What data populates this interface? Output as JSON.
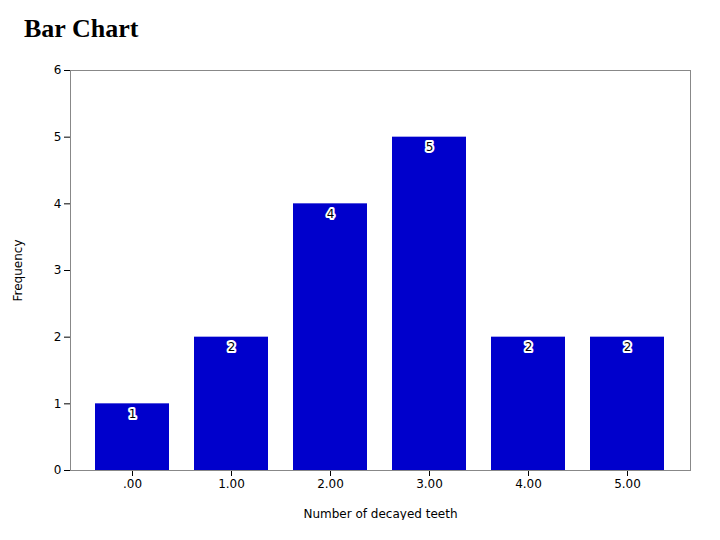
{
  "chart_data": {
    "type": "bar",
    "title": "Bar Chart",
    "categories": [
      ".00",
      "1.00",
      "2.00",
      "3.00",
      "4.00",
      "5.00"
    ],
    "values": [
      1,
      2,
      4,
      5,
      2,
      2
    ],
    "color": "#0000CC",
    "xlabel": "Number of decayed teeth",
    "ylabel": "Frequency",
    "ylim": [
      0,
      6
    ],
    "yticks": [
      0,
      1,
      2,
      3,
      4,
      5,
      6
    ],
    "grid": false,
    "data_labels": true
  }
}
